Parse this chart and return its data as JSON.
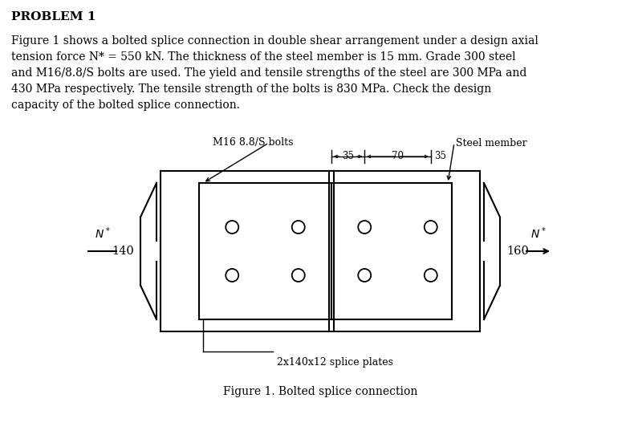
{
  "title": "PROBLEM 1",
  "body_lines": [
    "Figure 1 shows a bolted splice connection in double shear arrangement under a design axial",
    "tension force N* = 550 kN. The thickness of the steel member is 15 mm. Grade 300 steel",
    "and M16/8.8/S bolts are used. The yield and tensile strengths of the steel are 300 MPa and",
    "430 MPa respectively. The tensile strength of the bolts is 830 MPa. Check the design",
    "capacity of the bolted splice connection."
  ],
  "figure_caption": "Figure 1. Bolted splice connection",
  "bg_color": "#ffffff",
  "text_color": "#000000",
  "label_bolts": "M16 8.8/S bolts",
  "label_steel": "Steel member",
  "label_140": "140",
  "label_160": "160",
  "label_splice": "2x140x12 splice plates",
  "dim_text": "35  70  35",
  "title_fontsize": 11,
  "body_fontsize": 10,
  "caption_fontsize": 10,
  "annot_fontsize": 9,
  "dim_fontsize": 8.5,
  "num_fontsize": 10.5,
  "N_fontsize": 10
}
